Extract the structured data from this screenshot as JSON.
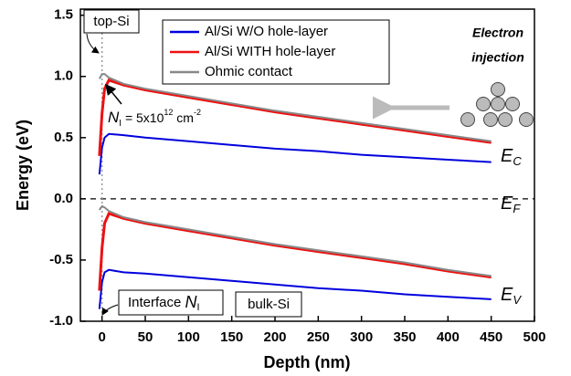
{
  "chart_data": {
    "type": "line",
    "x_label": "Depth (nm)",
    "y_label": "Energy (eV)",
    "x": [
      -3,
      0,
      3,
      8,
      25,
      50,
      100,
      150,
      200,
      250,
      300,
      350,
      400,
      450
    ],
    "series": [
      {
        "name": "Al/Si W/O hole-layer",
        "color": "#0000dd",
        "ec": [
          0.2,
          0.42,
          0.5,
          0.53,
          0.52,
          0.5,
          0.47,
          0.44,
          0.41,
          0.39,
          0.36,
          0.34,
          0.32,
          0.3
        ],
        "ev": [
          -0.9,
          -0.68,
          -0.6,
          -0.58,
          -0.6,
          -0.61,
          -0.64,
          -0.67,
          -0.7,
          -0.73,
          -0.75,
          -0.78,
          -0.8,
          -0.82
        ]
      },
      {
        "name": "Al/Si WITH hole-layer",
        "color": "#ee1111",
        "ec": [
          0.35,
          0.7,
          0.9,
          0.97,
          0.93,
          0.89,
          0.83,
          0.77,
          0.71,
          0.66,
          0.61,
          0.56,
          0.51,
          0.46
        ],
        "ev": [
          -0.75,
          -0.4,
          -0.2,
          -0.12,
          -0.16,
          -0.2,
          -0.26,
          -0.32,
          -0.38,
          -0.43,
          -0.48,
          -0.53,
          -0.59,
          -0.64
        ]
      },
      {
        "name": "Ohmic contact",
        "color": "#888888",
        "ec": [
          0.98,
          1.02,
          1.02,
          0.99,
          0.94,
          0.9,
          0.84,
          0.78,
          0.72,
          0.67,
          0.62,
          0.57,
          0.52,
          0.47
        ],
        "ev": [
          -0.09,
          -0.06,
          -0.07,
          -0.1,
          -0.15,
          -0.19,
          -0.25,
          -0.31,
          -0.37,
          -0.42,
          -0.47,
          -0.52,
          -0.58,
          -0.63
        ]
      }
    ],
    "xlim": [
      -25,
      500
    ],
    "ylim": [
      -1.0,
      1.55
    ],
    "xticks": [
      0,
      50,
      100,
      150,
      200,
      250,
      300,
      350,
      400,
      450,
      500
    ],
    "yticks": [
      {
        "value": -1.0,
        "label": "-1.0"
      },
      -0.5,
      {
        "value": 0.0,
        "label": "0.0"
      },
      0.5,
      {
        "value": 1.0,
        "label": "1.0"
      },
      1.5
    ],
    "fermi_level": 0,
    "interface_depth": 0,
    "legend": "top-center",
    "annotations": {
      "top_si": "top-Si",
      "electron_injection": [
        "Electron",
        "injection"
      ],
      "ni_density": [
        "N",
        "I",
        " = 5x10",
        "12",
        " cm",
        "-2"
      ],
      "interface": [
        "Interface ",
        "N",
        "I"
      ],
      "bulk_si": "bulk-Si",
      "ec": [
        "E",
        "C"
      ],
      "ef": [
        "E",
        "F"
      ],
      "ev": [
        "E",
        "V"
      ]
    }
  }
}
